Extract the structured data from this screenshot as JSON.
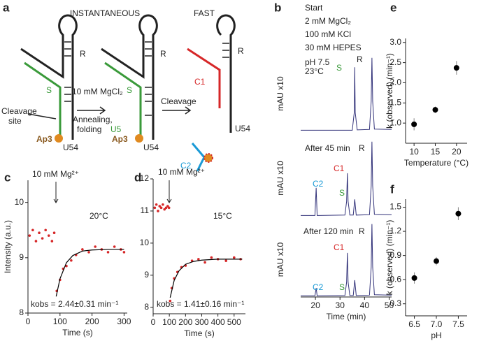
{
  "diagram": {
    "labels": [
      "a",
      "INSTANTANEOUS",
      "FAST",
      "R",
      "S",
      "Cleavage",
      "site",
      "Ap3",
      "U54",
      "10 mM MgCl₂",
      "Annealing,",
      "folding",
      "R",
      "S",
      "U5",
      "Ap3",
      "U54",
      "Cleavage",
      "R",
      "C1",
      "U54",
      "C2"
    ]
  },
  "chart_data": [
    {
      "type": "scatter",
      "panel_label": "c",
      "xlabel": "Time (s)",
      "ylabel": "Intensity (a.u.)",
      "color": "#d62728",
      "xlim": [
        0,
        310
      ],
      "ylim": [
        8,
        10.4
      ],
      "xticks": [
        0,
        100,
        200,
        300
      ],
      "yticks": [
        8,
        9,
        10
      ],
      "x": [
        5,
        15,
        25,
        35,
        45,
        55,
        65,
        75,
        82,
        90,
        100,
        110,
        120,
        135,
        150,
        170,
        190,
        210,
        230,
        250,
        270,
        290,
        300
      ],
      "values": [
        9.4,
        9.5,
        9.3,
        9.45,
        9.35,
        9.5,
        9.4,
        9.3,
        9.45,
        8.4,
        8.6,
        8.8,
        8.85,
        8.95,
        9.05,
        9.15,
        9.1,
        9.2,
        9.15,
        9.1,
        9.2,
        9.15,
        9.1
      ],
      "fit": {
        "x": [
          88,
          100,
          120,
          140,
          170,
          200,
          250,
          300
        ],
        "values": [
          8.3,
          8.62,
          8.91,
          9.04,
          9.12,
          9.14,
          9.15,
          9.15
        ],
        "color": "#000000"
      },
      "annotations": [
        {
          "text": "10 mM Mg²⁺"
        },
        {
          "text": "20°C"
        },
        {
          "text": "kobs = 2.44±0.31 min⁻¹"
        }
      ]
    },
    {
      "type": "scatter",
      "panel_label": "d",
      "xlabel": "Time (s)",
      "color": "#d62728",
      "xlim": [
        0,
        570
      ],
      "ylim": [
        7.8,
        12
      ],
      "xticks": [
        0,
        100,
        200,
        300,
        400,
        500
      ],
      "yticks": [
        8,
        9,
        10,
        11,
        12
      ],
      "x": [
        10,
        20,
        30,
        40,
        50,
        60,
        70,
        80,
        90,
        98,
        105,
        115,
        130,
        150,
        175,
        200,
        240,
        280,
        320,
        360,
        400,
        450,
        500,
        540
      ],
      "values": [
        11.1,
        11.2,
        11.0,
        11.15,
        11.1,
        11.2,
        11.05,
        11.1,
        11.15,
        11.1,
        8.2,
        8.6,
        8.9,
        9.1,
        9.25,
        9.3,
        9.45,
        9.5,
        9.4,
        9.55,
        9.5,
        9.45,
        9.55,
        9.5
      ],
      "fit": {
        "x": [
          105,
          130,
          160,
          200,
          250,
          300,
          400,
          550
        ],
        "values": [
          8.3,
          8.84,
          9.14,
          9.34,
          9.43,
          9.47,
          9.5,
          9.5
        ],
        "color": "#000000"
      },
      "annotations": [
        {
          "text": "10 mM Mg²⁺"
        },
        {
          "text": "15°C"
        },
        {
          "text": "kobs = 1.41±0.16 min⁻¹"
        }
      ]
    },
    {
      "type": "line",
      "panel_label": "b",
      "ylabel": "mAU x10",
      "color": "#33337a",
      "xlim": [
        14,
        51
      ],
      "ylim": [
        0,
        20
      ],
      "x": [
        14,
        35,
        35.8,
        36,
        36.2,
        37,
        42,
        42.7,
        43,
        43.3,
        44,
        51
      ],
      "values": [
        0.3,
        0.3,
        5,
        17,
        5,
        0.4,
        0.5,
        8,
        19.5,
        8,
        0.6,
        0.5
      ],
      "annotations": [
        {
          "text": "Start"
        },
        {
          "text": "2 mM MgCl₂"
        },
        {
          "text": "100 mM KCl"
        },
        {
          "text": "30 mM HEPES"
        },
        {
          "text": "pH 7.5"
        },
        {
          "text": "23°C"
        },
        {
          "text": "S",
          "color": "#3a9a3a"
        },
        {
          "text": "R"
        }
      ]
    },
    {
      "type": "line",
      "ylabel": "mAU x10",
      "color": "#33337a",
      "xlim": [
        14,
        51
      ],
      "ylim": [
        0,
        20
      ],
      "x": [
        14,
        19.8,
        20.3,
        20.7,
        21.5,
        32,
        32.7,
        33,
        33.3,
        34,
        35.4,
        36,
        36.6,
        42,
        42.7,
        43,
        43.3,
        44,
        51
      ],
      "values": [
        0.3,
        0.3,
        7.5,
        0.3,
        0.3,
        0.4,
        4,
        11.3,
        4,
        0.4,
        0.4,
        4.5,
        0.4,
        0.5,
        8,
        19.5,
        8,
        0.6,
        0.5
      ],
      "annotations": [
        {
          "text": "After 45 min"
        },
        {
          "text": "R"
        },
        {
          "text": "C1",
          "color": "#d62728"
        },
        {
          "text": "C2",
          "color": "#1a9ad6"
        },
        {
          "text": "S",
          "color": "#3a9a3a"
        }
      ]
    },
    {
      "type": "line",
      "ylabel": "mAU x10",
      "xlabel": "Time (min)",
      "color": "#33337a",
      "xlim": [
        14,
        51
      ],
      "ylim": [
        0,
        20
      ],
      "xticks": [
        20,
        30,
        40,
        50
      ],
      "x": [
        14,
        19.8,
        20.3,
        20.7,
        21.5,
        32,
        32.7,
        33,
        33.3,
        34,
        35.4,
        36,
        36.6,
        42,
        42.7,
        43,
        43.3,
        44,
        51
      ],
      "values": [
        0.3,
        0.3,
        2.4,
        0.3,
        0.3,
        0.4,
        4,
        11.8,
        4,
        0.4,
        0.4,
        4.5,
        0.4,
        0.5,
        8,
        19.5,
        8,
        0.6,
        0.5
      ],
      "annotations": [
        {
          "text": "After 120 min"
        },
        {
          "text": "R"
        },
        {
          "text": "C1",
          "color": "#d62728"
        },
        {
          "text": "C2",
          "color": "#1a9ad6"
        },
        {
          "text": "S",
          "color": "#3a9a3a"
        }
      ]
    },
    {
      "type": "scatter",
      "panel_label": "e",
      "xlabel": "Temperature (°C)",
      "ylabel": "k (observed) (min⁻¹)",
      "color": "#000000",
      "xlim": [
        8,
        22.5
      ],
      "ylim": [
        0.5,
        3.1
      ],
      "xticks": [
        10,
        15,
        20
      ],
      "yticks": [
        {
          "value": 1,
          "label": "1.0"
        },
        1.5,
        {
          "value": 2,
          "label": "2.0"
        },
        2.5,
        {
          "value": 3,
          "label": "3.0"
        }
      ],
      "x": [
        10,
        15,
        20
      ],
      "values": [
        0.97,
        1.33,
        2.37
      ],
      "errors": [
        0.15,
        0.08,
        0.17
      ]
    },
    {
      "type": "scatter",
      "panel_label": "f",
      "xlabel": "pH",
      "ylabel": "k (observed) (min⁻¹)",
      "color": "#000000",
      "xlim": [
        6.3,
        7.7
      ],
      "ylim": [
        0.15,
        1.6
      ],
      "xticks": [
        6.5,
        {
          "value": 7,
          "label": "7.0"
        },
        7.5
      ],
      "yticks": [
        0.3,
        0.6,
        0.9,
        1.2,
        1.5
      ],
      "x": [
        6.5,
        7,
        7.5
      ],
      "values": [
        0.62,
        0.83,
        1.42
      ],
      "errors": [
        0.07,
        0.05,
        0.08
      ]
    }
  ]
}
